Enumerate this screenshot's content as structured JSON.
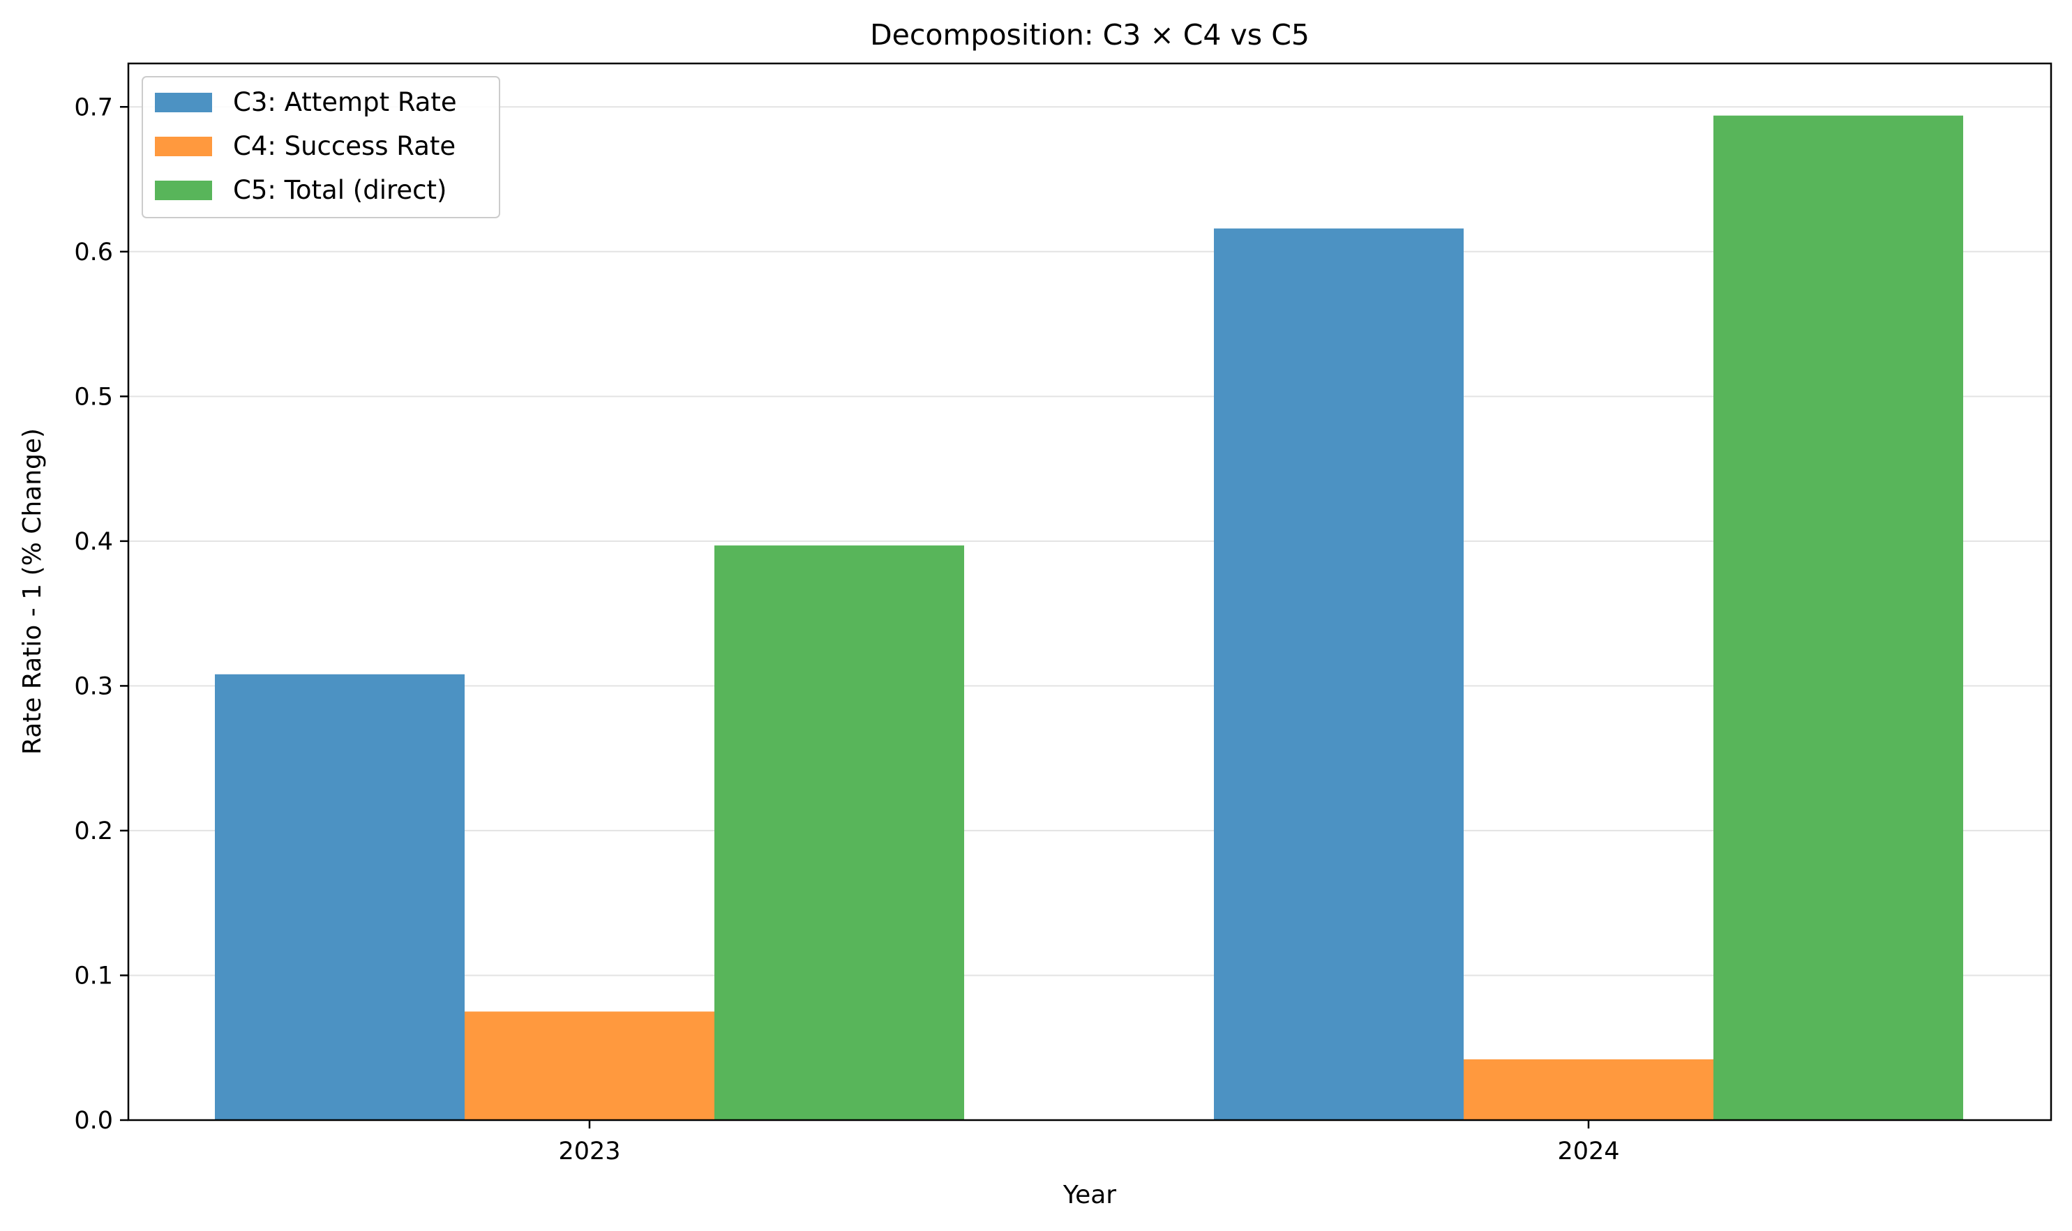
{
  "chart_data": {
    "type": "bar",
    "title": "Decomposition: C3 × C4 vs C5",
    "xlabel": "Year",
    "ylabel": "Rate Ratio - 1 (% Change)",
    "categories": [
      "2023",
      "2024"
    ],
    "series": [
      {
        "name": "C3: Attempt Rate",
        "values": [
          0.308,
          0.616
        ],
        "color": "#4c92c3"
      },
      {
        "name": "C4: Success Rate",
        "values": [
          0.075,
          0.042
        ],
        "color": "#ff993e"
      },
      {
        "name": "C5: Total (direct)",
        "values": [
          0.397,
          0.694
        ],
        "color": "#58b55a"
      }
    ],
    "ylim": [
      0,
      0.73
    ],
    "yticks": [
      "0.0",
      "0.1",
      "0.2",
      "0.3",
      "0.4",
      "0.5",
      "0.6",
      "0.7"
    ],
    "grid": "horizontal",
    "legend_position": "top-left"
  }
}
